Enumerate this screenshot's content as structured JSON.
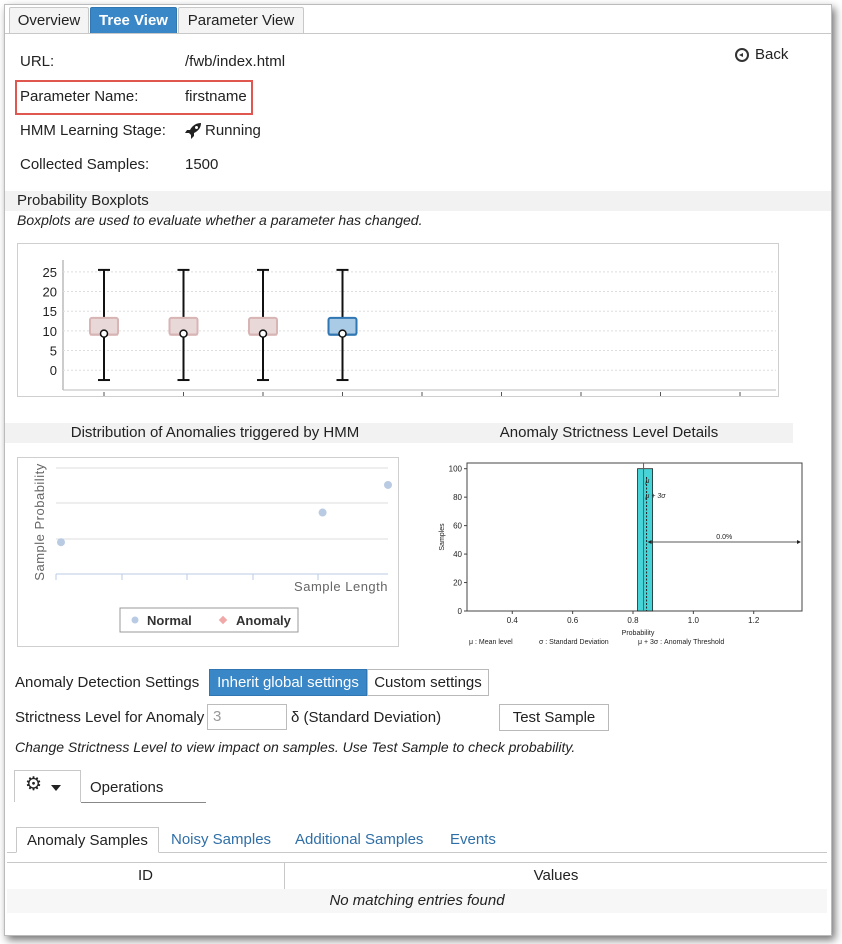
{
  "tabs": [
    {
      "label": "Overview",
      "active": false
    },
    {
      "label": "Tree View",
      "active": true
    },
    {
      "label": "Parameter View",
      "active": false
    }
  ],
  "back_label": "Back",
  "info": {
    "url_label": "URL:",
    "url_value": "/fwb/index.html",
    "param_label": "Parameter Name:",
    "param_value": "firstname",
    "stage_label": "HMM Learning Stage:",
    "stage_value": "Running",
    "samples_label": "Collected Samples:",
    "samples_value": "1500"
  },
  "boxplots": {
    "title": "Probability Boxplots",
    "subtitle": "Boxplots are used to evaluate whether a parameter has changed.",
    "chart_data": {
      "type": "boxplot",
      "y_ticks": [
        "25",
        "20",
        "15",
        "10",
        "5",
        "0"
      ],
      "ylim": [
        -3,
        27
      ],
      "boxes": [
        {
          "whisker_low": -2.5,
          "q1": 9,
          "median": 9.3,
          "q3": 13.3,
          "whisker_high": 25.5,
          "color": "#e8d8d8",
          "stroke": "#d8b4b4"
        },
        {
          "whisker_low": -2.5,
          "q1": 9,
          "median": 9.3,
          "q3": 13.3,
          "whisker_high": 25.5,
          "color": "#e8d8d8",
          "stroke": "#d8b4b4"
        },
        {
          "whisker_low": -2.5,
          "q1": 9,
          "median": 9.3,
          "q3": 13.3,
          "whisker_high": 25.5,
          "color": "#e8d8d8",
          "stroke": "#d8b4b4"
        },
        {
          "whisker_low": -2.5,
          "q1": 9,
          "median": 9.3,
          "q3": 13.3,
          "whisker_high": 25.5,
          "color": "#a9cbe6",
          "stroke": "#2f76b2"
        }
      ],
      "slots": 9
    }
  },
  "distribution": {
    "title": "Distribution of Anomalies triggered by HMM",
    "chart_data": {
      "type": "scatter",
      "ylabel": "Sample Probability",
      "xlabel": "Sample Length",
      "legend": [
        {
          "name": "Normal",
          "color": "#b9cbe3"
        },
        {
          "name": "Anomaly",
          "color": "#f0a8a8"
        }
      ],
      "points": [
        {
          "x": 0.0,
          "y": 0.3
        },
        {
          "x": 0.8,
          "y": 0.58
        },
        {
          "x": 1.0,
          "y": 0.84
        }
      ]
    }
  },
  "strictness": {
    "title": "Anomaly Strictness Level Details",
    "chart_data": {
      "type": "bar",
      "ylabel": "Samples",
      "xlabel": "Probability",
      "y_ticks": [
        "100",
        "80",
        "60",
        "40",
        "20",
        "0"
      ],
      "x_ticks": [
        "0.4",
        "0.6",
        "0.8",
        "1.0",
        "1.2"
      ],
      "xlim": [
        0.25,
        1.36
      ],
      "ylim": [
        0,
        104
      ],
      "bar": {
        "x0": 0.815,
        "x1": 0.865,
        "value": 100
      },
      "annotation_mu": "μ",
      "annotation_threshold": "μ + 3σ",
      "percent_label": "0.0%",
      "legend_mu": "μ : Mean  level",
      "legend_sigma": "σ : Standard Deviation",
      "legend_threshold": "μ + 3σ : Anomaly Threshold"
    }
  },
  "settings": {
    "label": "Anomaly Detection Settings",
    "inherit": "Inherit global settings",
    "custom": "Custom settings",
    "strict_label": "Strictness Level for Anomaly",
    "strict_placeholder": "3",
    "delta_label": "δ (Standard Deviation)",
    "test_button": "Test Sample",
    "hint": "Change Strictness Level to view impact on samples. Use Test Sample to check probability."
  },
  "operations_label": "Operations",
  "subtabs": [
    {
      "label": "Anomaly Samples",
      "active": true
    },
    {
      "label": "Noisy Samples",
      "active": false
    },
    {
      "label": "Additional Samples",
      "active": false
    },
    {
      "label": "Events",
      "active": false
    }
  ],
  "table": {
    "headers": [
      "ID",
      "Values"
    ],
    "empty": "No matching entries found"
  }
}
